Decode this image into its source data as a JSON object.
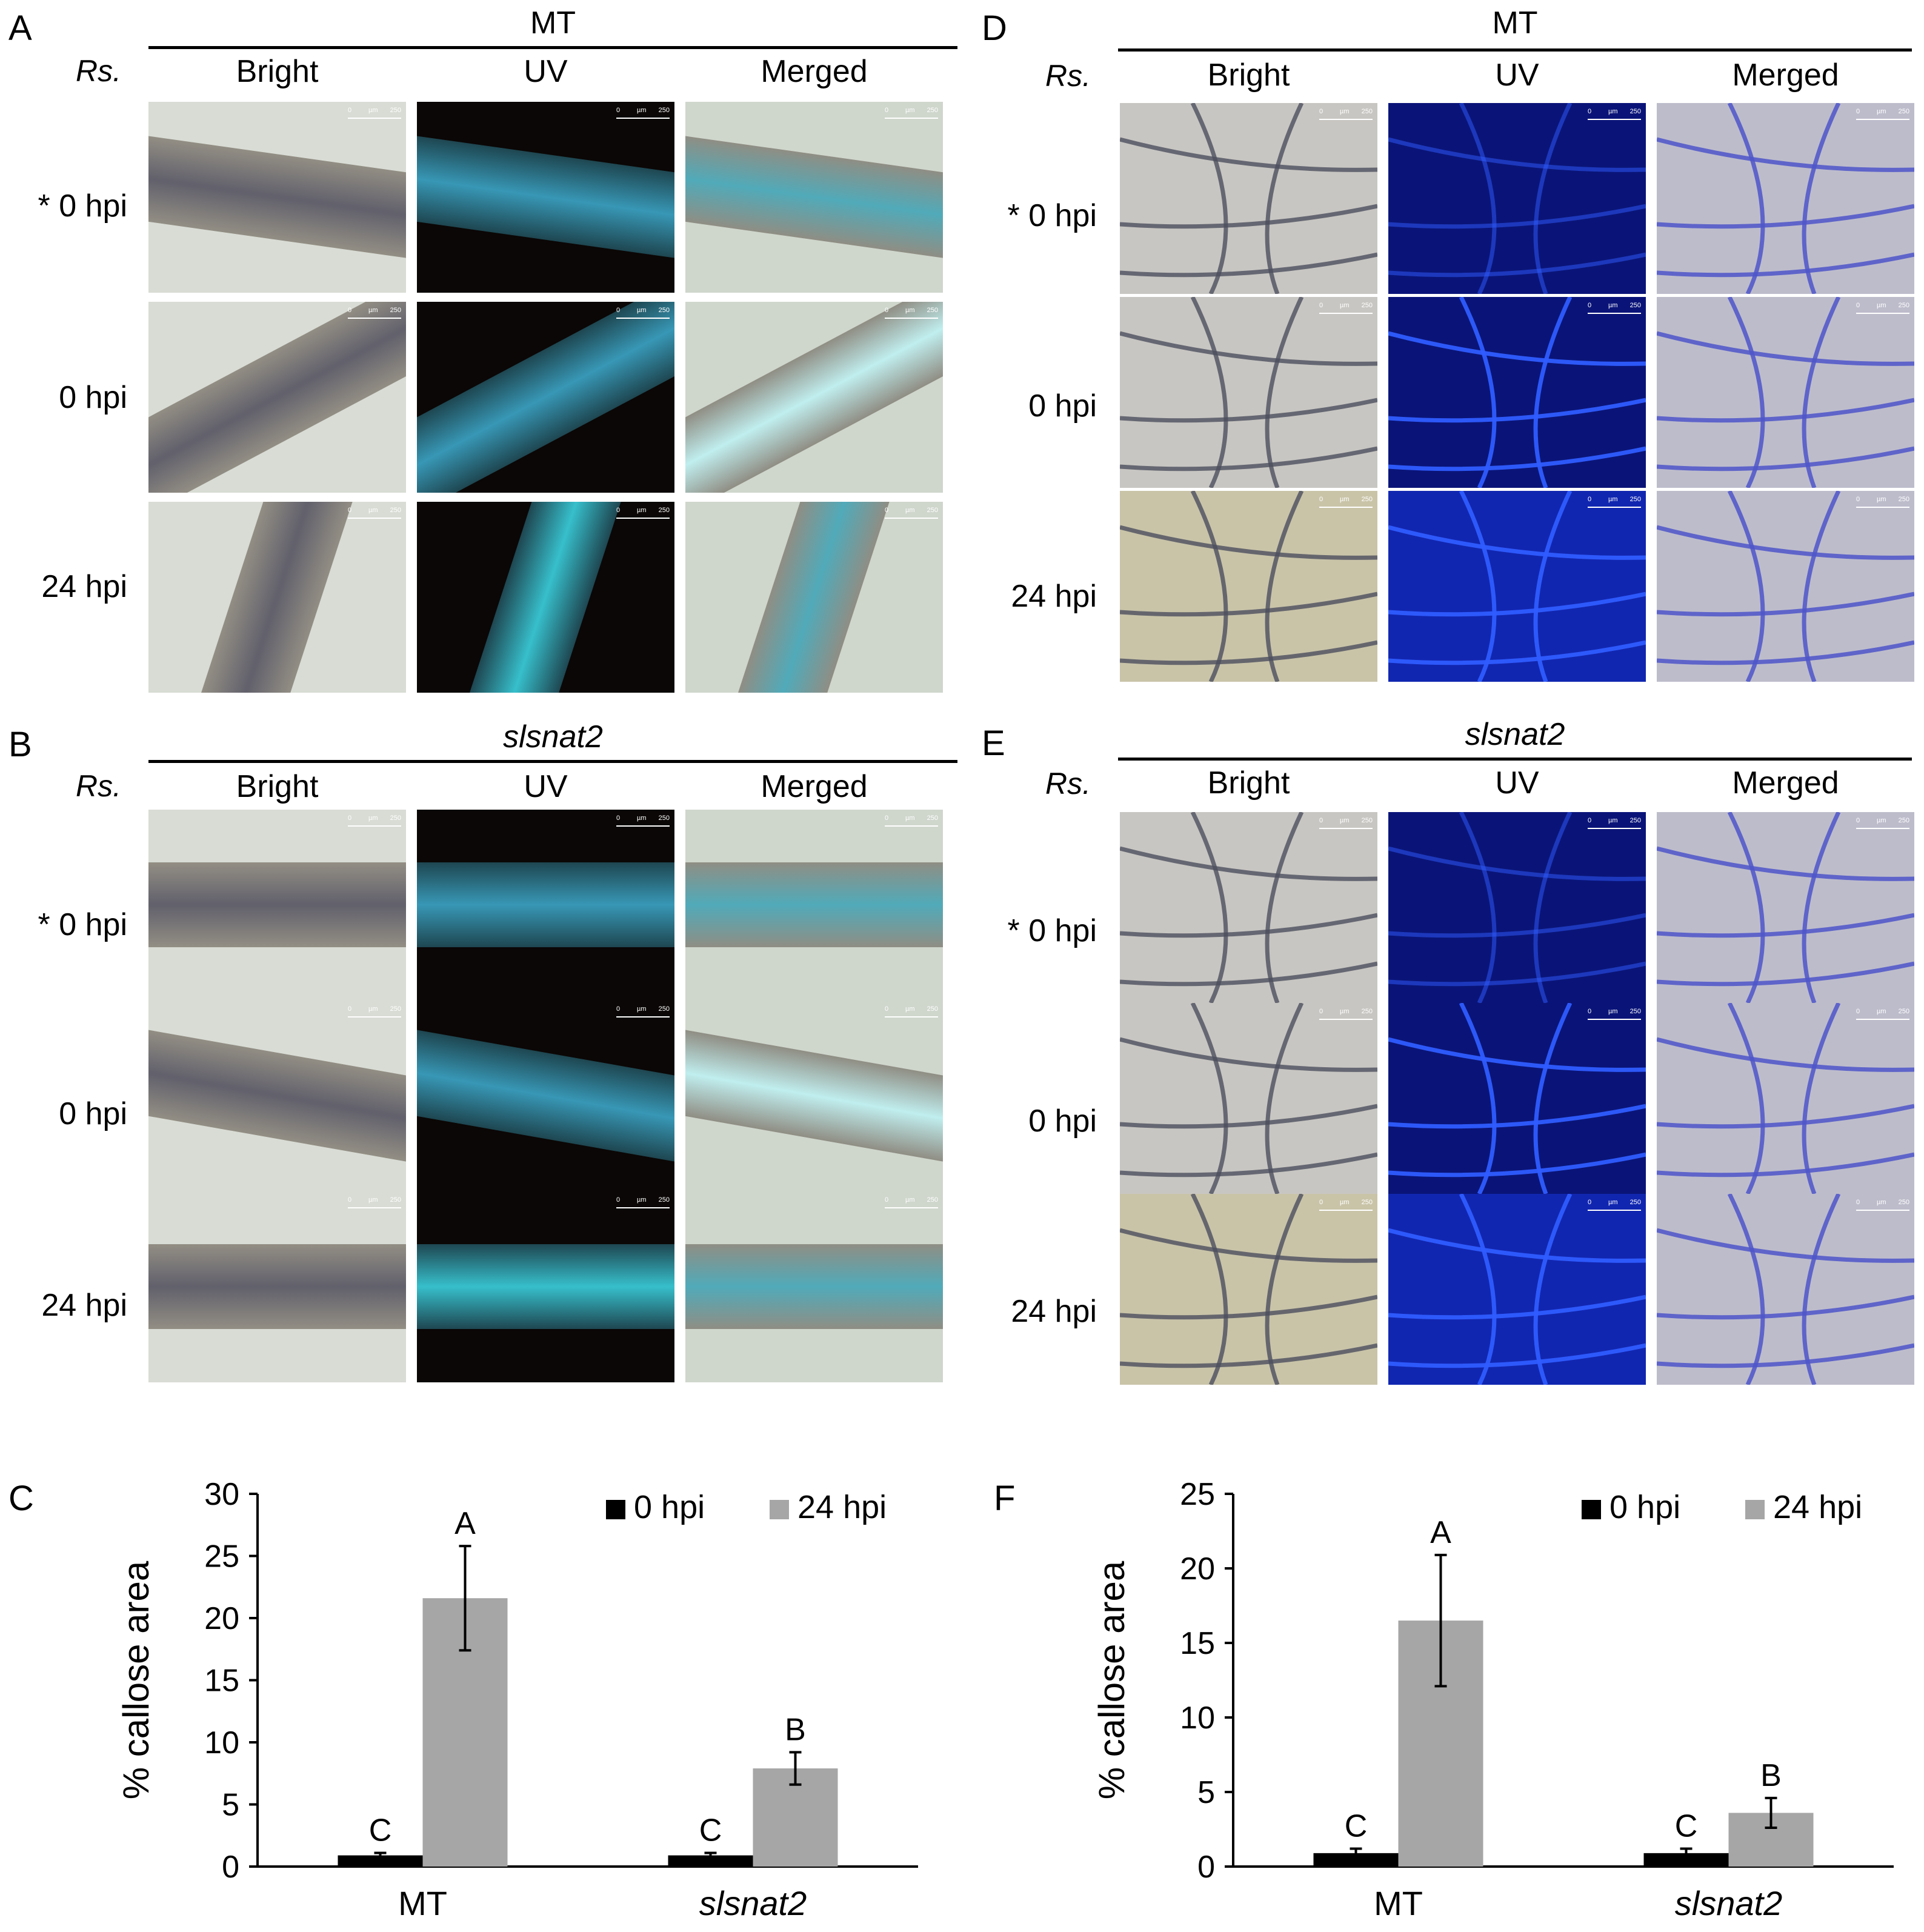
{
  "panels": {
    "A": {
      "letter": "A",
      "title": "MT",
      "italic": false,
      "organ": "root",
      "headers": [
        "Bright",
        "UV",
        "Merged"
      ],
      "rs": "Rs.",
      "rows": [
        "* 0 hpi",
        "0 hpi",
        "24 hpi"
      ]
    },
    "B": {
      "letter": "B",
      "title": "slsnat2",
      "italic": true,
      "organ": "root",
      "headers": [
        "Bright",
        "UV",
        "Merged"
      ],
      "rs": "Rs.",
      "rows": [
        "* 0 hpi",
        "0 hpi",
        "24 hpi"
      ]
    },
    "D": {
      "letter": "D",
      "title": "MT",
      "italic": false,
      "organ": "leaf",
      "headers": [
        "Bright",
        "UV",
        "Merged"
      ],
      "rs": "Rs.",
      "rows": [
        "* 0 hpi",
        "0 hpi",
        "24 hpi"
      ]
    },
    "E": {
      "letter": "E",
      "title": "slsnat2",
      "italic": true,
      "organ": "leaf",
      "headers": [
        "Bright",
        "UV",
        "Merged"
      ],
      "rs": "Rs.",
      "rows": [
        "* 0 hpi",
        "0 hpi",
        "24 hpi"
      ]
    }
  },
  "scale_bar": {
    "left": "0",
    "unit": "µm",
    "right": "250"
  },
  "charts": {
    "C": {
      "letter": "C",
      "ylabel": "% callose area",
      "legend": [
        "0 hpi",
        "24 hpi"
      ]
    },
    "F": {
      "letter": "F",
      "ylabel": "% callose area",
      "legend": [
        "0 hpi",
        "24 hpi"
      ]
    }
  },
  "chart_data": [
    {
      "id": "C",
      "type": "bar",
      "categories": [
        "MT",
        "slsnat2"
      ],
      "ylabel": "% callose area",
      "ylim": [
        0,
        30
      ],
      "yticks": [
        0,
        5,
        10,
        15,
        20,
        25,
        30
      ],
      "series": [
        {
          "name": "0 hpi",
          "color": "#000000",
          "values": [
            0.9,
            0.9
          ],
          "errors": [
            0.2,
            0.2
          ],
          "letters": [
            "C",
            "C"
          ]
        },
        {
          "name": "24 hpi",
          "color": "#a6a6a6",
          "values": [
            21.6,
            7.9
          ],
          "errors": [
            4.2,
            1.3
          ],
          "letters": [
            "A",
            "B"
          ]
        }
      ]
    },
    {
      "id": "F",
      "type": "bar",
      "categories": [
        "MT",
        "slsnat2"
      ],
      "ylabel": "% callose area",
      "ylim": [
        0,
        25
      ],
      "yticks": [
        0,
        5,
        10,
        15,
        20,
        25
      ],
      "series": [
        {
          "name": "0 hpi",
          "color": "#000000",
          "values": [
            0.9,
            0.9
          ],
          "errors": [
            0.3,
            0.3
          ],
          "letters": [
            "C",
            "C"
          ]
        },
        {
          "name": "24 hpi",
          "color": "#a6a6a6",
          "values": [
            16.5,
            3.6
          ],
          "errors": [
            4.4,
            1.0
          ],
          "letters": [
            "A",
            "B"
          ]
        }
      ]
    }
  ]
}
